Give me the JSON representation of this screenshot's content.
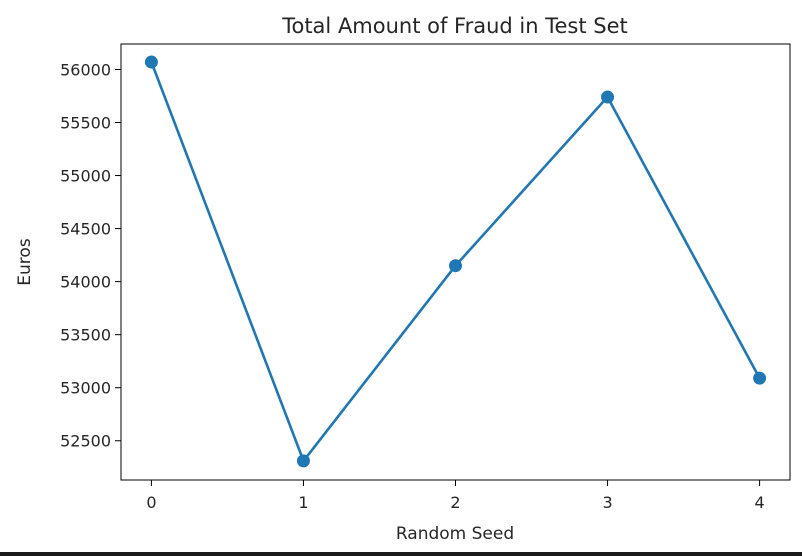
{
  "chart_data": {
    "type": "line",
    "title": "Total Amount of Fraud in Test Set",
    "xlabel": "Random Seed",
    "ylabel": "Euros",
    "x": [
      0,
      1,
      2,
      3,
      4
    ],
    "xticks": [
      "0",
      "1",
      "2",
      "3",
      "4"
    ],
    "yticks": [
      "52500",
      "53000",
      "53500",
      "54000",
      "54500",
      "55000",
      "55500",
      "56000"
    ],
    "xlim": [
      -0.2,
      4.2
    ],
    "ylim": [
      52130,
      56240
    ],
    "grid": false,
    "series": [
      {
        "values": [
          56070,
          52310,
          54150,
          55740,
          53090
        ],
        "color": "#1f77b4",
        "marker": "circle"
      }
    ]
  }
}
